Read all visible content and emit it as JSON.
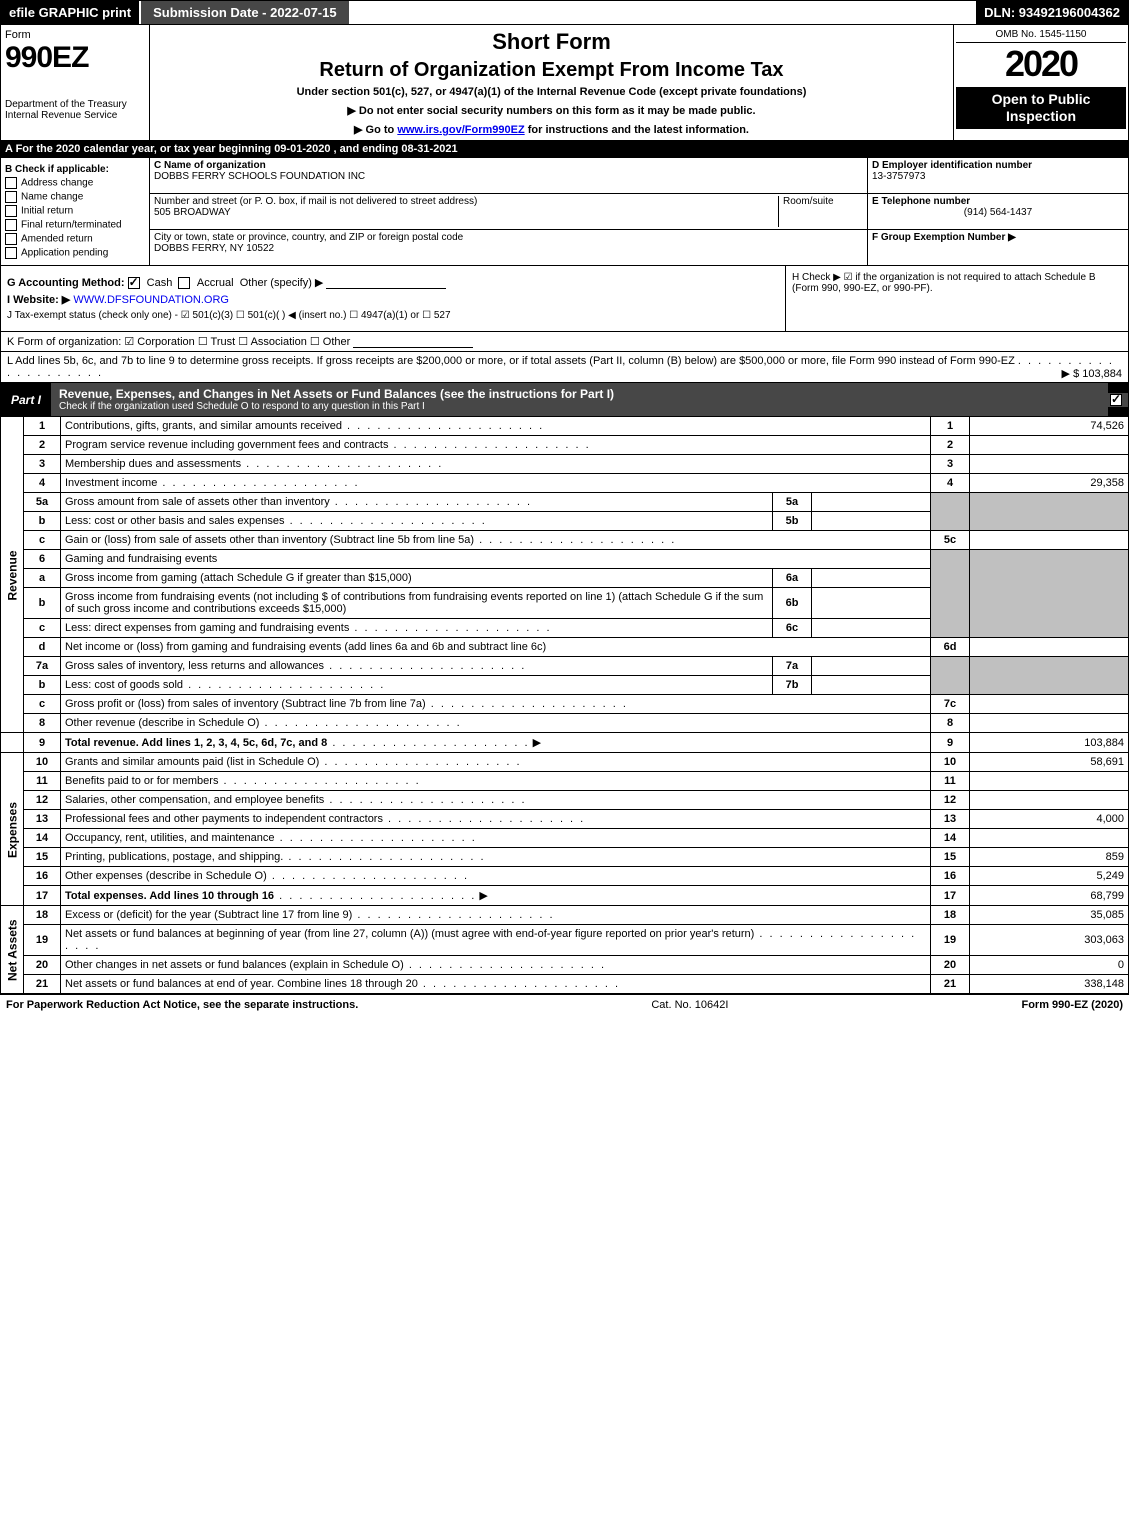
{
  "top": {
    "efile": "efile GRAPHIC print",
    "submission": "Submission Date - 2022-07-15",
    "dln": "DLN: 93492196004362"
  },
  "header": {
    "form": "Form",
    "number": "990EZ",
    "dept1": "Department of the Treasury",
    "dept2": "Internal Revenue Service",
    "short": "Short Form",
    "title": "Return of Organization Exempt From Income Tax",
    "subtitle": "Under section 501(c), 527, or 4947(a)(1) of the Internal Revenue Code (except private foundations)",
    "warn": "▶ Do not enter social security numbers on this form as it may be made public.",
    "goto": "▶ Go to www.irs.gov/Form990EZ for instructions and the latest information.",
    "omb": "OMB No. 1545-1150",
    "year": "2020",
    "open": "Open to Public Inspection"
  },
  "rowA": "A For the 2020 calendar year, or tax year beginning 09-01-2020 , and ending 08-31-2021",
  "sectionB": {
    "title": "B Check if applicable:",
    "items": [
      "Address change",
      "Name change",
      "Initial return",
      "Final return/terminated",
      "Amended return",
      "Application pending"
    ]
  },
  "sectionC": {
    "name_label": "C Name of organization",
    "name": "DOBBS FERRY SCHOOLS FOUNDATION INC",
    "street_label": "Number and street (or P. O. box, if mail is not delivered to street address)",
    "street": "505 BROADWAY",
    "room_label": "Room/suite",
    "city_label": "City or town, state or province, country, and ZIP or foreign postal code",
    "city": "DOBBS FERRY, NY  10522"
  },
  "sectionD": {
    "label": "D Employer identification number",
    "ein": "13-3757973",
    "tel_label": "E Telephone number",
    "tel": "(914) 564-1437",
    "group_label": "F Group Exemption Number  ▶"
  },
  "rowG": {
    "label": "G Accounting Method:",
    "cash": "Cash",
    "accrual": "Accrual",
    "other": "Other (specify) ▶"
  },
  "rowH": "H Check ▶ ☑ if the organization is not required to attach Schedule B (Form 990, 990-EZ, or 990-PF).",
  "rowI": {
    "label": "I Website: ▶",
    "value": "WWW.DFSFOUNDATION.ORG"
  },
  "rowJ": "J Tax-exempt status (check only one) - ☑ 501(c)(3)  ☐ 501(c)(  ) ◀ (insert no.)  ☐ 4947(a)(1) or  ☐ 527",
  "rowK": "K Form of organization:  ☑ Corporation  ☐ Trust  ☐ Association  ☐ Other",
  "rowL": {
    "line1": "L Add lines 5b, 6c, and 7b to line 9 to determine gross receipts. If gross receipts are $200,000 or more, or if total assets (Part II, column (B) below) are $500,000 or more, file Form 990 instead of Form 990-EZ",
    "amount": "▶ $ 103,884"
  },
  "part1": {
    "tab": "Part I",
    "title": "Revenue, Expenses, and Changes in Net Assets or Fund Balances (see the instructions for Part I)",
    "sub": "Check if the organization used Schedule O to respond to any question in this Part I"
  },
  "sideLabels": {
    "revenue": "Revenue",
    "expenses": "Expenses",
    "netassets": "Net Assets"
  },
  "lines": {
    "1": {
      "no": "1",
      "desc": "Contributions, gifts, grants, and similar amounts received",
      "num": "1",
      "amt": "74,526"
    },
    "2": {
      "no": "2",
      "desc": "Program service revenue including government fees and contracts",
      "num": "2",
      "amt": ""
    },
    "3": {
      "no": "3",
      "desc": "Membership dues and assessments",
      "num": "3",
      "amt": ""
    },
    "4": {
      "no": "4",
      "desc": "Investment income",
      "num": "4",
      "amt": "29,358"
    },
    "5a": {
      "no": "5a",
      "desc": "Gross amount from sale of assets other than inventory",
      "sub": "5a"
    },
    "5b": {
      "no": "b",
      "desc": "Less: cost or other basis and sales expenses",
      "sub": "5b"
    },
    "5c": {
      "no": "c",
      "desc": "Gain or (loss) from sale of assets other than inventory (Subtract line 5b from line 5a)",
      "num": "5c",
      "amt": ""
    },
    "6": {
      "no": "6",
      "desc": "Gaming and fundraising events"
    },
    "6a": {
      "no": "a",
      "desc": "Gross income from gaming (attach Schedule G if greater than $15,000)",
      "sub": "6a"
    },
    "6b": {
      "no": "b",
      "desc": "Gross income from fundraising events (not including $                    of contributions from fundraising events reported on line 1) (attach Schedule G if the sum of such gross income and contributions exceeds $15,000)",
      "sub": "6b"
    },
    "6c": {
      "no": "c",
      "desc": "Less: direct expenses from gaming and fundraising events",
      "sub": "6c"
    },
    "6d": {
      "no": "d",
      "desc": "Net income or (loss) from gaming and fundraising events (add lines 6a and 6b and subtract line 6c)",
      "num": "6d",
      "amt": ""
    },
    "7a": {
      "no": "7a",
      "desc": "Gross sales of inventory, less returns and allowances",
      "sub": "7a"
    },
    "7b": {
      "no": "b",
      "desc": "Less: cost of goods sold",
      "sub": "7b"
    },
    "7c": {
      "no": "c",
      "desc": "Gross profit or (loss) from sales of inventory (Subtract line 7b from line 7a)",
      "num": "7c",
      "amt": ""
    },
    "8": {
      "no": "8",
      "desc": "Other revenue (describe in Schedule O)",
      "num": "8",
      "amt": ""
    },
    "9": {
      "no": "9",
      "desc": "Total revenue. Add lines 1, 2, 3, 4, 5c, 6d, 7c, and 8",
      "num": "9",
      "amt": "103,884",
      "arrow": true,
      "bold": true
    },
    "10": {
      "no": "10",
      "desc": "Grants and similar amounts paid (list in Schedule O)",
      "num": "10",
      "amt": "58,691"
    },
    "11": {
      "no": "11",
      "desc": "Benefits paid to or for members",
      "num": "11",
      "amt": ""
    },
    "12": {
      "no": "12",
      "desc": "Salaries, other compensation, and employee benefits",
      "num": "12",
      "amt": ""
    },
    "13": {
      "no": "13",
      "desc": "Professional fees and other payments to independent contractors",
      "num": "13",
      "amt": "4,000"
    },
    "14": {
      "no": "14",
      "desc": "Occupancy, rent, utilities, and maintenance",
      "num": "14",
      "amt": ""
    },
    "15": {
      "no": "15",
      "desc": "Printing, publications, postage, and shipping.",
      "num": "15",
      "amt": "859"
    },
    "16": {
      "no": "16",
      "desc": "Other expenses (describe in Schedule O)",
      "num": "16",
      "amt": "5,249"
    },
    "17": {
      "no": "17",
      "desc": "Total expenses. Add lines 10 through 16",
      "num": "17",
      "amt": "68,799",
      "arrow": true,
      "bold": true
    },
    "18": {
      "no": "18",
      "desc": "Excess or (deficit) for the year (Subtract line 17 from line 9)",
      "num": "18",
      "amt": "35,085"
    },
    "19": {
      "no": "19",
      "desc": "Net assets or fund balances at beginning of year (from line 27, column (A)) (must agree with end-of-year figure reported on prior year's return)",
      "num": "19",
      "amt": "303,063"
    },
    "20": {
      "no": "20",
      "desc": "Other changes in net assets or fund balances (explain in Schedule O)",
      "num": "20",
      "amt": "0"
    },
    "21": {
      "no": "21",
      "desc": "Net assets or fund balances at end of year. Combine lines 18 through 20",
      "num": "21",
      "amt": "338,148"
    }
  },
  "footer": {
    "left": "For Paperwork Reduction Act Notice, see the separate instructions.",
    "center": "Cat. No. 10642I",
    "right": "Form 990-EZ (2020)"
  }
}
